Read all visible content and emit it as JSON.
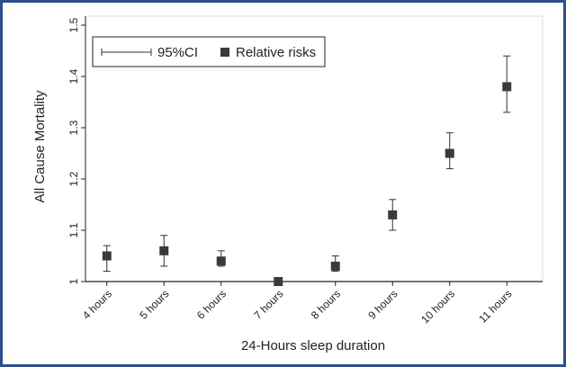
{
  "chart_data": {
    "type": "errorbar",
    "y_label": "All Cause Mortality",
    "x_label": "24-Hours sleep duration",
    "categories": [
      "4 hours",
      "5 hours",
      "6 hours",
      "7 hours",
      "8 hours",
      "9 hours",
      "10 hours",
      "11 hours"
    ],
    "series": [
      {
        "name": "Relative risks",
        "color": "#3a3a3a",
        "values": [
          1.05,
          1.06,
          1.04,
          1.0,
          1.03,
          1.13,
          1.25,
          1.38
        ],
        "ci_lower": [
          1.02,
          1.03,
          1.03,
          1.0,
          1.02,
          1.1,
          1.22,
          1.33
        ],
        "ci_upper": [
          1.07,
          1.09,
          1.06,
          1.0,
          1.05,
          1.16,
          1.29,
          1.44
        ]
      }
    ],
    "ci_name": "95%CI",
    "ylim": [
      1,
      1.5
    ],
    "yticks": [
      1,
      1.1,
      1.2,
      1.3,
      1.4,
      1.5
    ],
    "legend": "upper left"
  }
}
